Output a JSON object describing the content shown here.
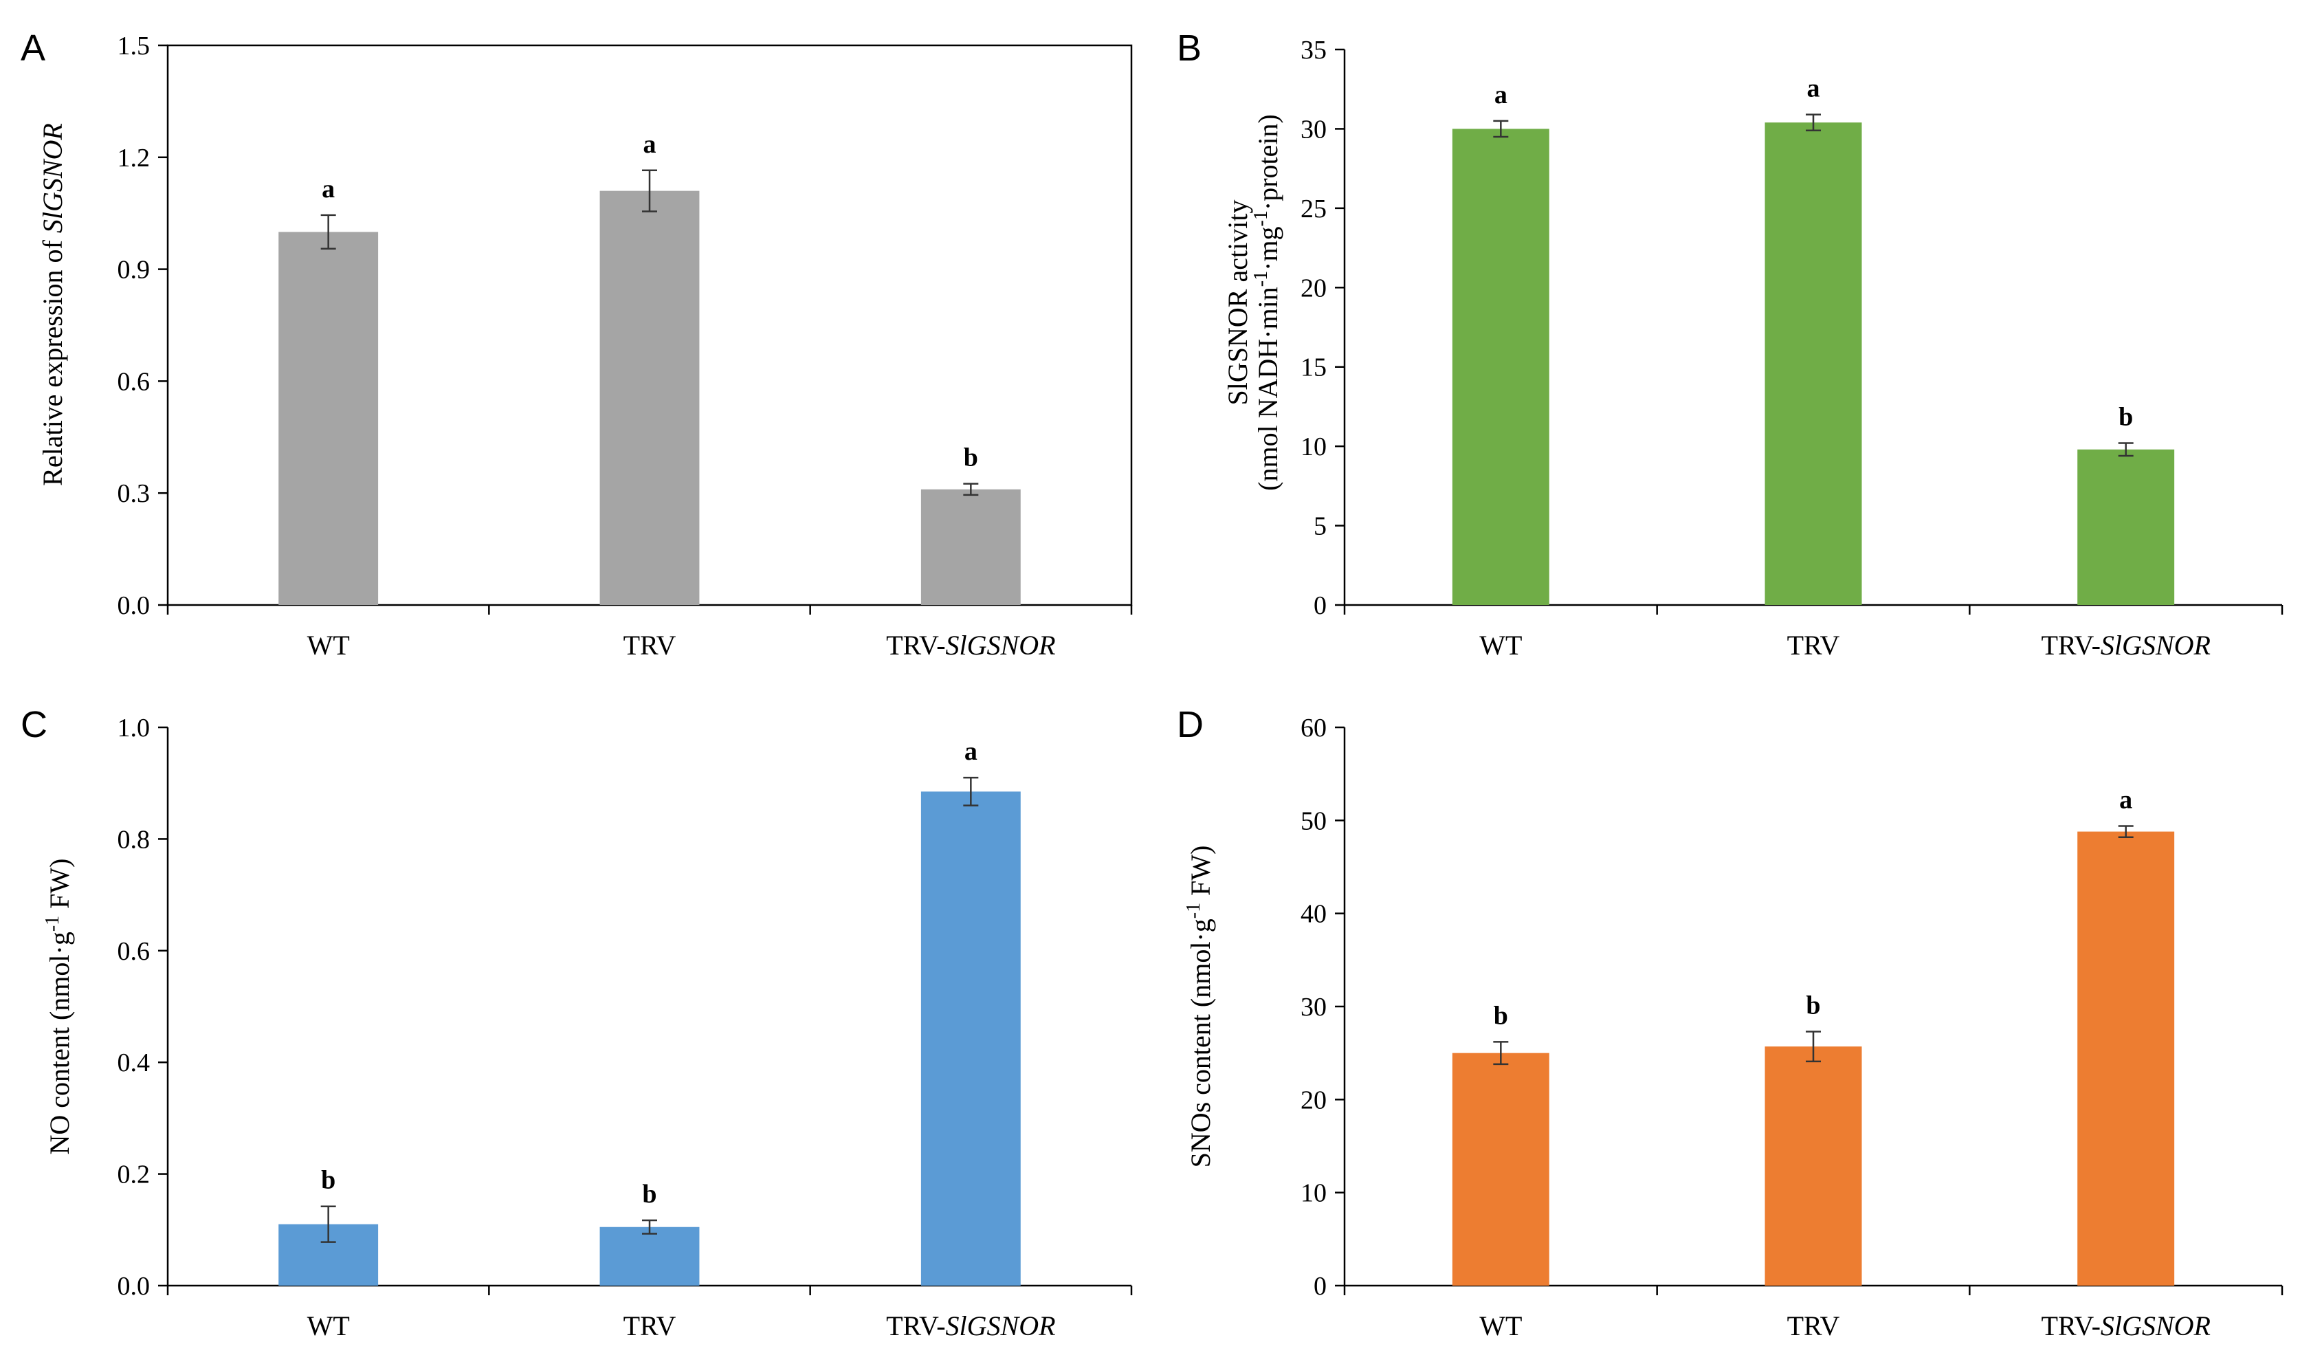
{
  "figure": {
    "chart_data": [
      {
        "panel": "A",
        "type": "bar",
        "ylabel_parts": [
          {
            "text": "Relative  expression  of  ",
            "italic": false
          },
          {
            "text": "SlGSNOR",
            "italic": true
          }
        ],
        "ylabel_line2": [],
        "categories": [
          [
            {
              "text": "WT"
            }
          ],
          [
            {
              "text": "TRV"
            }
          ],
          [
            {
              "text": "TRV-"
            },
            {
              "text": "SlGSNOR",
              "italic": true
            }
          ]
        ],
        "values": [
          1.0,
          1.11,
          0.31
        ],
        "errors": [
          0.045,
          0.055,
          0.015
        ],
        "significance": [
          "a",
          "a",
          "b"
        ],
        "ylim": [
          0,
          1.5
        ],
        "yticks": [
          "0.0",
          "0.3",
          "0.6",
          "0.9",
          "1.2",
          "1.5"
        ],
        "color": "#a5a5a5",
        "plot_border": true
      },
      {
        "panel": "B",
        "type": "bar",
        "ylabel_parts": [
          {
            "text": "SlGSNOR  activity",
            "italic": false
          }
        ],
        "ylabel_line2": [
          {
            "text": "(nmol  NADH·min"
          },
          {
            "text": "-1",
            "sup": true
          },
          {
            "text": "·mg"
          },
          {
            "text": "-1",
            "sup": true
          },
          {
            "text": "·protein)"
          }
        ],
        "categories": [
          [
            {
              "text": "WT"
            }
          ],
          [
            {
              "text": "TRV"
            }
          ],
          [
            {
              "text": "TRV-"
            },
            {
              "text": "SlGSNOR",
              "italic": true
            }
          ]
        ],
        "values": [
          30.0,
          30.4,
          9.8
        ],
        "errors": [
          0.5,
          0.5,
          0.4
        ],
        "significance": [
          "a",
          "a",
          "b"
        ],
        "ylim": [
          0,
          35
        ],
        "yticks": [
          "0",
          "5",
          "10",
          "15",
          "20",
          "25",
          "30",
          "35"
        ],
        "color": "#70ad47",
        "plot_border": false
      },
      {
        "panel": "C",
        "type": "bar",
        "ylabel_parts": [
          {
            "text": "NO content  (nmol·g"
          },
          {
            "text": "-1",
            "sup": true
          },
          {
            "text": "  FW)"
          }
        ],
        "ylabel_line2": [],
        "categories": [
          [
            {
              "text": "WT"
            }
          ],
          [
            {
              "text": "TRV"
            }
          ],
          [
            {
              "text": "TRV-"
            },
            {
              "text": "SlGSNOR",
              "italic": true
            }
          ]
        ],
        "values": [
          0.11,
          0.105,
          0.885
        ],
        "errors": [
          0.032,
          0.012,
          0.025
        ],
        "significance": [
          "b",
          "b",
          "a"
        ],
        "ylim": [
          0,
          1.0
        ],
        "yticks": [
          "0.0",
          "0.2",
          "0.4",
          "0.6",
          "0.8",
          "1.0"
        ],
        "color": "#5b9bd5",
        "plot_border": false
      },
      {
        "panel": "D",
        "type": "bar",
        "ylabel_parts": [
          {
            "text": "SNOs content  (nmol·g"
          },
          {
            "text": "-1",
            "sup": true
          },
          {
            "text": "  FW)"
          }
        ],
        "ylabel_line2": [],
        "categories": [
          [
            {
              "text": "WT"
            }
          ],
          [
            {
              "text": "TRV"
            }
          ],
          [
            {
              "text": "TRV-"
            },
            {
              "text": "SlGSNOR",
              "italic": true
            }
          ]
        ],
        "values": [
          25.0,
          25.7,
          48.8
        ],
        "errors": [
          1.2,
          1.6,
          0.6
        ],
        "significance": [
          "b",
          "b",
          "a"
        ],
        "ylim": [
          0,
          60
        ],
        "yticks": [
          "0",
          "10",
          "20",
          "30",
          "40",
          "50",
          "60"
        ],
        "color": "#ed7d31",
        "plot_border": false
      }
    ]
  }
}
